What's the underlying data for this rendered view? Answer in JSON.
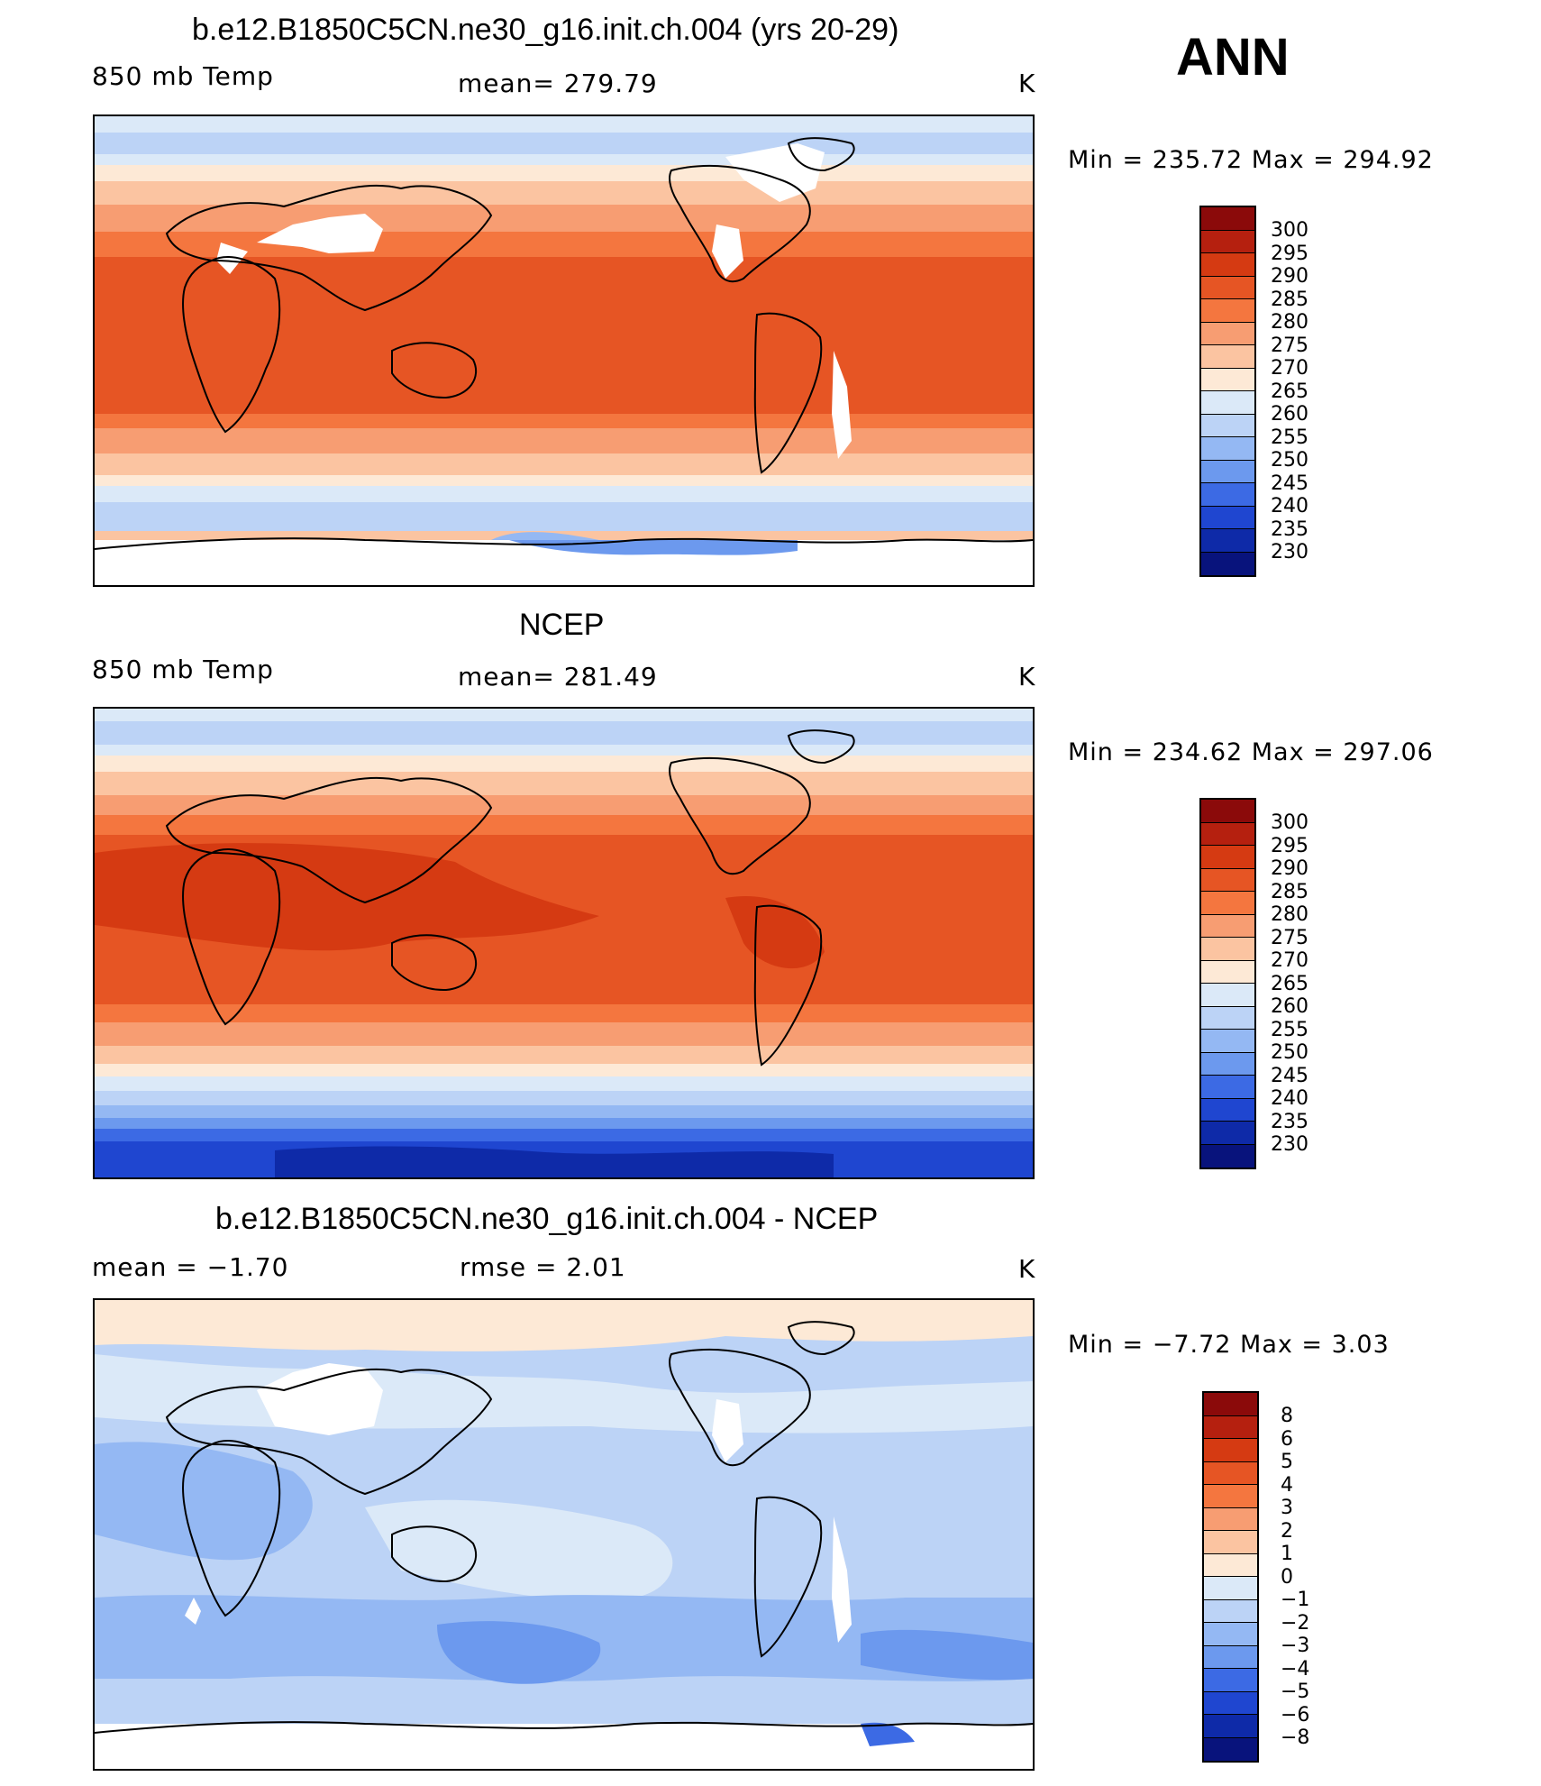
{
  "figure": {
    "season": "ANN"
  },
  "panels": [
    {
      "title": "b.e12.B1850C5CN.ne30_g16.init.ch.004 (yrs 20-29)",
      "left_label": "850 mb Temp",
      "center_label": "mean=  279.79",
      "units": "K",
      "minmax": "Min  =  235.72  Max  =  294.92",
      "colorbar_labels": [
        "300",
        "295",
        "290",
        "285",
        "280",
        "275",
        "270",
        "265",
        "260",
        "255",
        "250",
        "245",
        "240",
        "235",
        "230"
      ],
      "colorbar_colors": [
        "#8b0a0a",
        "#b5200f",
        "#d53a12",
        "#e65524",
        "#f4763f",
        "#f79d72",
        "#fbc4a1",
        "#fde9d6",
        "#dbe9f8",
        "#bcd3f6",
        "#94b8f3",
        "#6c99ee",
        "#3c6ae4",
        "#1f46d0",
        "#0e2aa8",
        "#08137c"
      ]
    },
    {
      "title": "NCEP",
      "left_label": "850 mb Temp",
      "center_label": "mean=  281.49",
      "units": "K",
      "minmax": "Min  =  234.62  Max  =  297.06",
      "colorbar_labels": [
        "300",
        "295",
        "290",
        "285",
        "280",
        "275",
        "270",
        "265",
        "260",
        "255",
        "250",
        "245",
        "240",
        "235",
        "230"
      ],
      "colorbar_colors": [
        "#8b0a0a",
        "#b5200f",
        "#d53a12",
        "#e65524",
        "#f4763f",
        "#f79d72",
        "#fbc4a1",
        "#fde9d6",
        "#dbe9f8",
        "#bcd3f6",
        "#94b8f3",
        "#6c99ee",
        "#3c6ae4",
        "#1f46d0",
        "#0e2aa8",
        "#08137c"
      ]
    },
    {
      "title": "b.e12.B1850C5CN.ne30_g16.init.ch.004 - NCEP",
      "left_label": "mean  =    −1.70",
      "center_label": "rmse  =     2.01",
      "units": "K",
      "minmax": "Min  =    −7.72  Max  =     3.03",
      "colorbar_labels": [
        "8",
        "6",
        "5",
        "4",
        "3",
        "2",
        "1",
        "0",
        "−1",
        "−2",
        "−3",
        "−4",
        "−5",
        "−6",
        "−8"
      ],
      "colorbar_colors": [
        "#8b0a0a",
        "#b5200f",
        "#d53a12",
        "#e65524",
        "#f4763f",
        "#f79d72",
        "#fbc4a1",
        "#fde9d6",
        "#dbe9f8",
        "#bcd3f6",
        "#94b8f3",
        "#6c99ee",
        "#3c6ae4",
        "#1f46d0",
        "#0e2aa8",
        "#08137c"
      ]
    }
  ]
}
